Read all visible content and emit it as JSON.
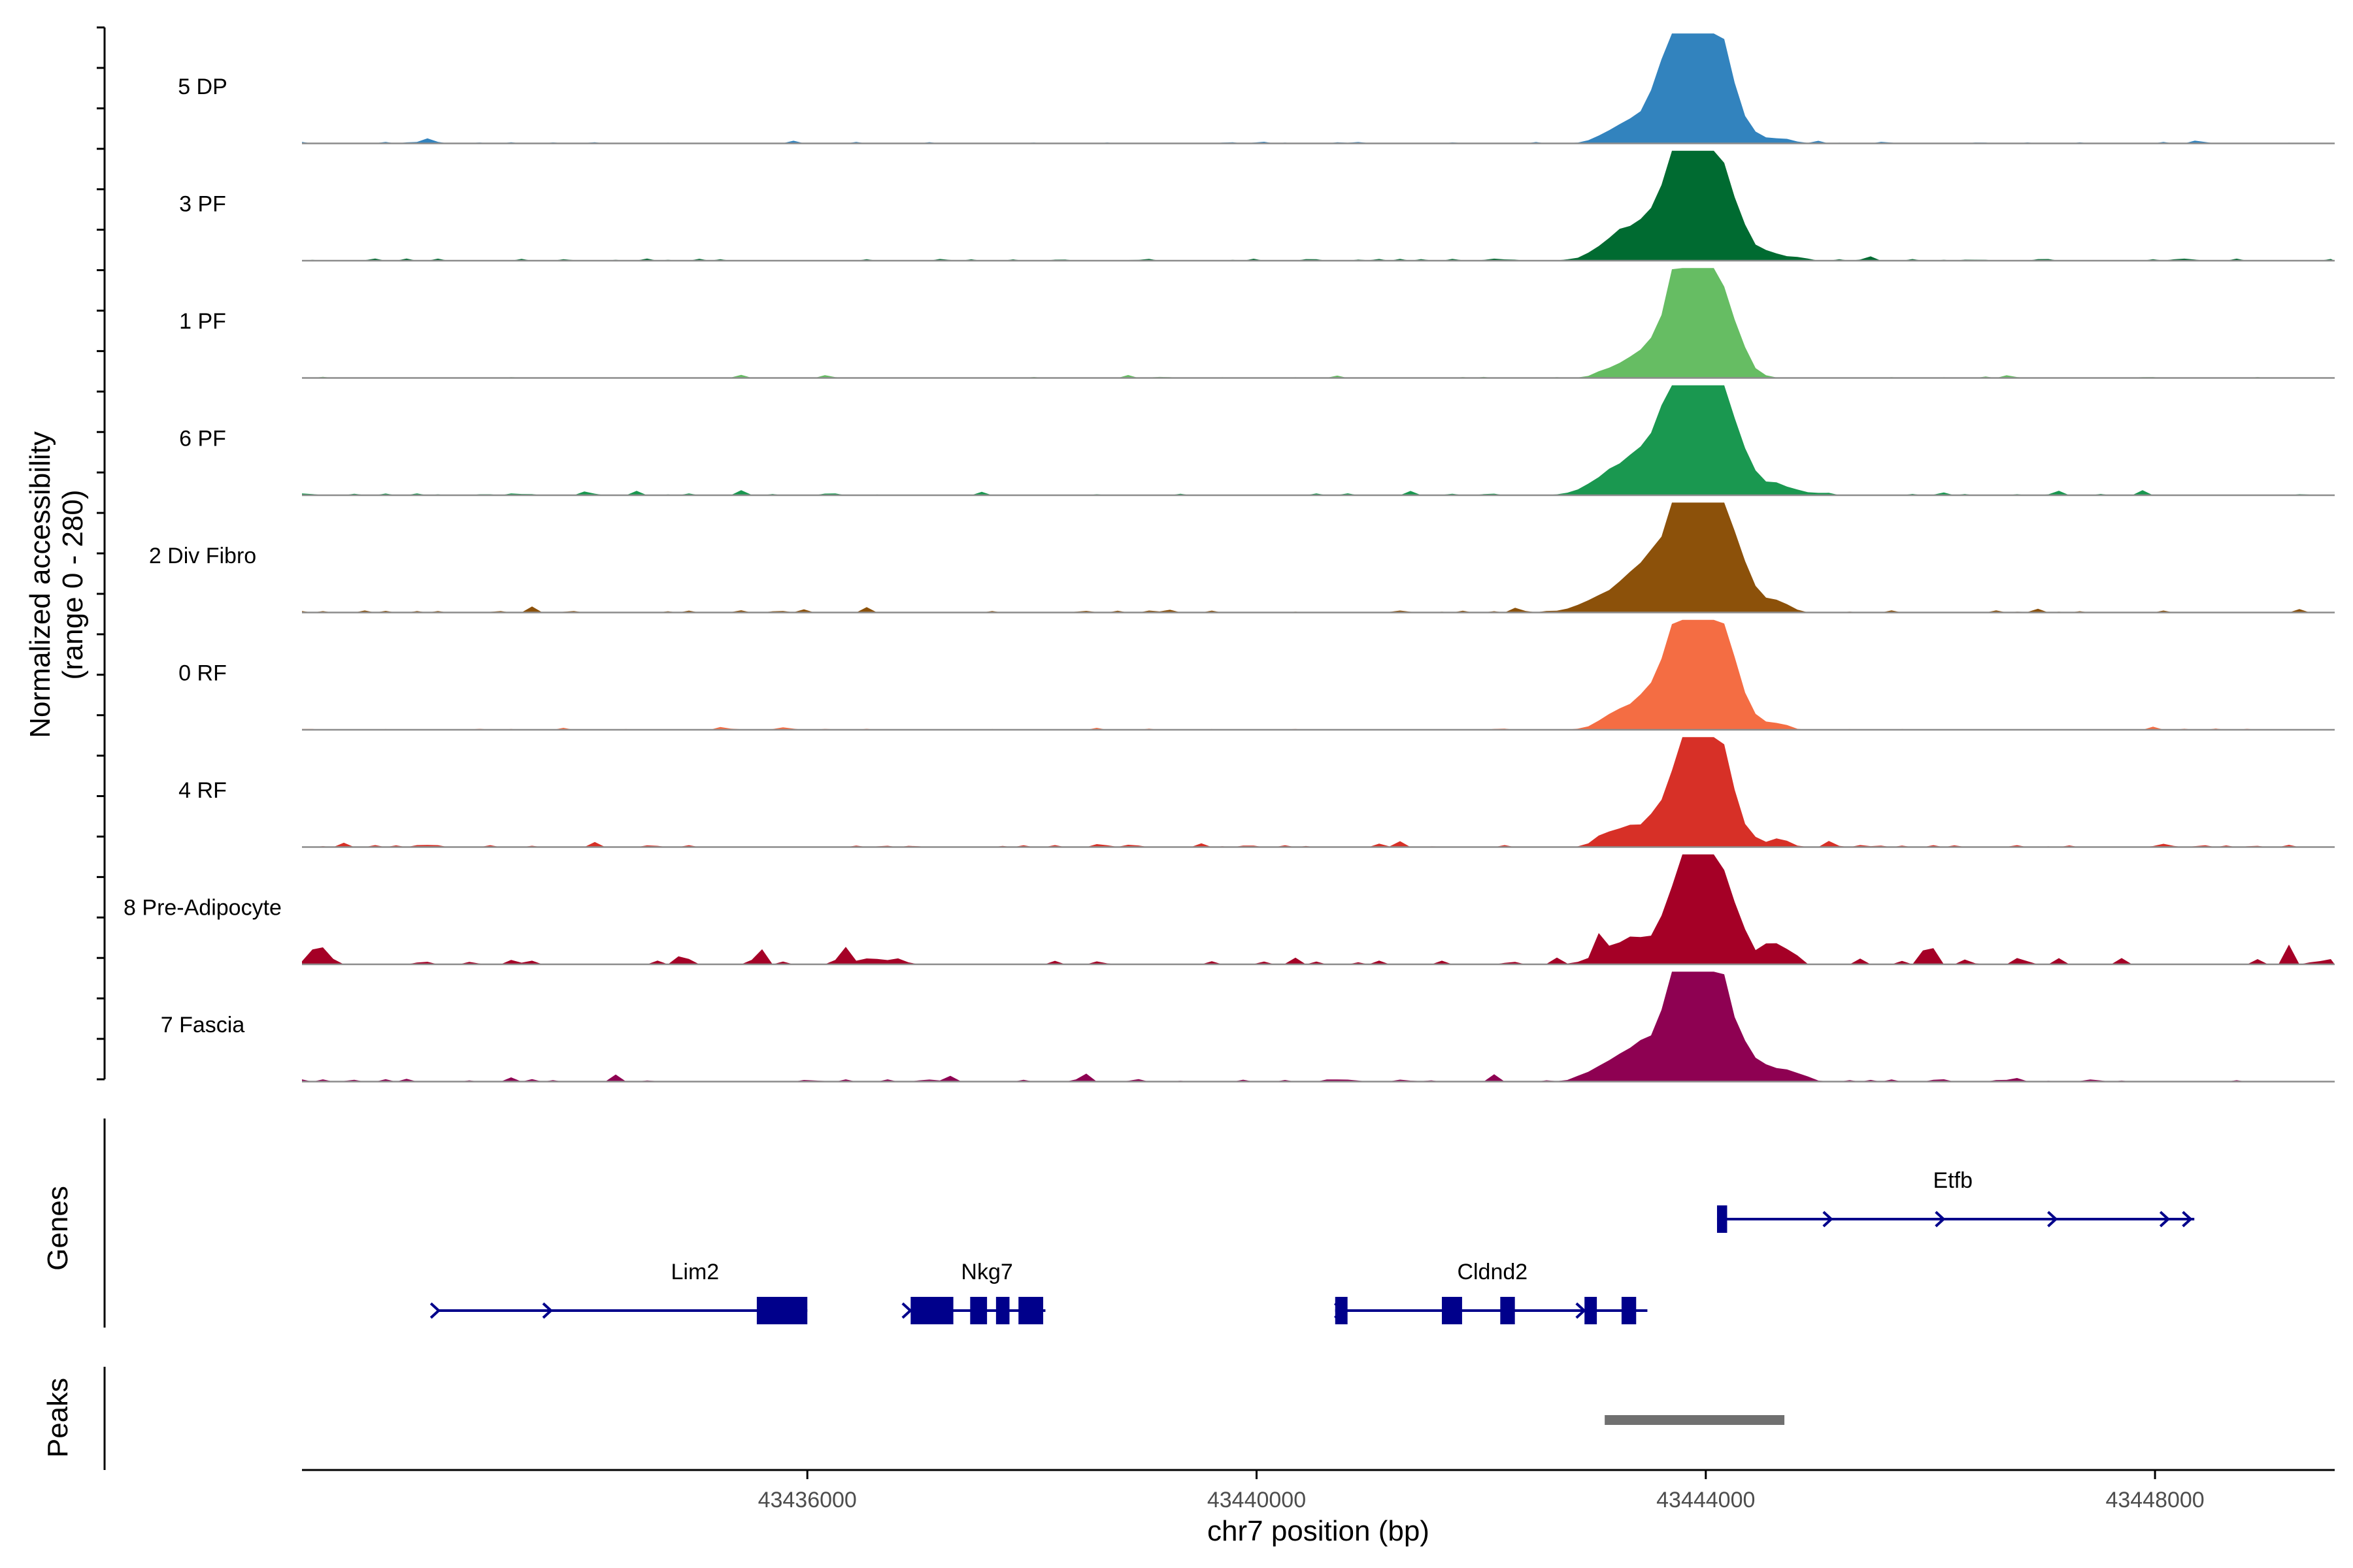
{
  "chart_data": {
    "type": "area",
    "title": "",
    "xlabel": "chr7 position (bp)",
    "ylabel_line1": "Normalized accessibility",
    "ylabel_line2": "(range 0 - 280)",
    "xlim": [
      43431500,
      43449600
    ],
    "xticks": [
      {
        "value": 43436000,
        "label": "43436000"
      },
      {
        "value": 43440000,
        "label": "43440000"
      },
      {
        "value": 43444000,
        "label": "43444000"
      },
      {
        "value": 43448000,
        "label": "43448000"
      }
    ],
    "ylim": [
      0,
      280
    ],
    "track_names": [
      "5 DP",
      "3 PF",
      "1 PF",
      "6 PF",
      "2 Div Fibro",
      "0 RF",
      "4 RF",
      "8 Pre-Adipocyte",
      "7 Fascia"
    ],
    "series": [
      {
        "name": "5 DP",
        "color": "#3283BE",
        "peaks": [
          [
            43443150,
            0.07,
            120
          ],
          [
            43443500,
            0.23,
            220
          ],
          [
            43443780,
            0.82,
            170
          ],
          [
            43444020,
            0.98,
            160
          ],
          [
            43444220,
            0.2,
            150
          ],
          [
            43444650,
            0.04,
            120
          ]
        ],
        "noise": 0.03
      },
      {
        "name": "3 PF",
        "color": "#006B31",
        "peaks": [
          [
            43443150,
            0.09,
            130
          ],
          [
            43443450,
            0.3,
            250
          ],
          [
            43443800,
            0.9,
            150
          ],
          [
            43444020,
            1.0,
            170
          ],
          [
            43444230,
            0.2,
            160
          ],
          [
            43444600,
            0.06,
            130
          ]
        ],
        "noise": 0.04
      },
      {
        "name": "1 PF",
        "color": "#66BD63",
        "peaks": [
          [
            43443180,
            0.06,
            130
          ],
          [
            43443480,
            0.18,
            200
          ],
          [
            43443780,
            0.78,
            160
          ],
          [
            43444030,
            1.0,
            170
          ],
          [
            43444230,
            0.15,
            140
          ]
        ],
        "noise": 0.02
      },
      {
        "name": "6 PF",
        "color": "#1A9850",
        "peaks": [
          [
            43443150,
            0.14,
            200
          ],
          [
            43443500,
            0.35,
            230
          ],
          [
            43443780,
            0.85,
            160
          ],
          [
            43444020,
            0.98,
            170
          ],
          [
            43444230,
            0.3,
            170
          ],
          [
            43444650,
            0.08,
            180
          ]
        ],
        "noise": 0.035
      },
      {
        "name": "2 Div Fibro",
        "color": "#8C510A",
        "peaks": [
          [
            43443200,
            0.15,
            250
          ],
          [
            43443500,
            0.3,
            200
          ],
          [
            43443780,
            0.76,
            160
          ],
          [
            43444060,
            0.92,
            170
          ],
          [
            43444260,
            0.3,
            160
          ],
          [
            43444650,
            0.1,
            90
          ]
        ],
        "noise": 0.04
      },
      {
        "name": "0 RF",
        "color": "#F46D43",
        "peaks": [
          [
            43443200,
            0.08,
            150
          ],
          [
            43443500,
            0.25,
            220
          ],
          [
            43443800,
            0.82,
            170
          ],
          [
            43444040,
            1.0,
            150
          ],
          [
            43444230,
            0.28,
            160
          ],
          [
            43444650,
            0.05,
            90
          ]
        ],
        "noise": 0.02
      },
      {
        "name": "4 RF",
        "color": "#D73027",
        "peaks": [
          [
            43443150,
            0.12,
            120
          ],
          [
            43443450,
            0.15,
            150
          ],
          [
            43443800,
            0.7,
            160
          ],
          [
            43444040,
            0.92,
            150
          ],
          [
            43444230,
            0.2,
            120
          ],
          [
            43444650,
            0.08,
            90
          ]
        ],
        "noise": 0.04
      },
      {
        "name": "8 Pre-Adipocyte",
        "color": "#A50026",
        "peaks": [
          [
            43443150,
            0.12,
            160
          ],
          [
            43443400,
            0.2,
            150
          ],
          [
            43443780,
            0.75,
            130
          ],
          [
            43444040,
            1.0,
            150
          ],
          [
            43444230,
            0.22,
            130
          ],
          [
            43444620,
            0.2,
            100
          ]
        ],
        "noise": 0.12
      },
      {
        "name": "7 Fascia",
        "color": "#8E0152",
        "peaks": [
          [
            43443150,
            0.14,
            180
          ],
          [
            43443450,
            0.25,
            200
          ],
          [
            43443780,
            0.88,
            150
          ],
          [
            43444030,
            0.95,
            170
          ],
          [
            43444250,
            0.25,
            170
          ],
          [
            43444650,
            0.1,
            160
          ]
        ],
        "noise": 0.05
      }
    ],
    "genes_label": "Genes",
    "gene_color": "#00008B",
    "genes": [
      {
        "name": "Lim2",
        "start": 43432700,
        "end": 43436000,
        "row": 2,
        "label_at": 43435000,
        "arrows": [
          43432700,
          43433700
        ],
        "exons": [
          [
            43435550,
            43436000
          ]
        ]
      },
      {
        "name": "Nkg7",
        "start": 43436900,
        "end": 43438120,
        "row": 2,
        "label_at": 43437600,
        "arrows": [
          43436900,
          43438000
        ],
        "exons": [
          [
            43436920,
            43437300
          ],
          [
            43437450,
            43437600
          ],
          [
            43437680,
            43437800
          ],
          [
            43437880,
            43438100
          ]
        ]
      },
      {
        "name": "Cldnd2",
        "start": 43440700,
        "end": 43443480,
        "row": 2,
        "label_at": 43442100,
        "arrows": [
          43440750,
          43442900
        ],
        "exons": [
          [
            43440700,
            43440810
          ],
          [
            43441650,
            43441830
          ],
          [
            43442170,
            43442300
          ],
          [
            43442920,
            43443030
          ],
          [
            43443250,
            43443380
          ]
        ]
      },
      {
        "name": "Etfb",
        "start": 43444100,
        "end": 43448350,
        "row": 1,
        "label_at": 43446200,
        "arrows": [
          43445100,
          43446100,
          43447100,
          43448100,
          43448300
        ],
        "exons": [
          [
            43444100,
            43444190
          ]
        ]
      }
    ],
    "peaks_label": "Peaks",
    "peak_color": "#707070",
    "peak_regions": [
      [
        43443100,
        43444700
      ]
    ]
  }
}
